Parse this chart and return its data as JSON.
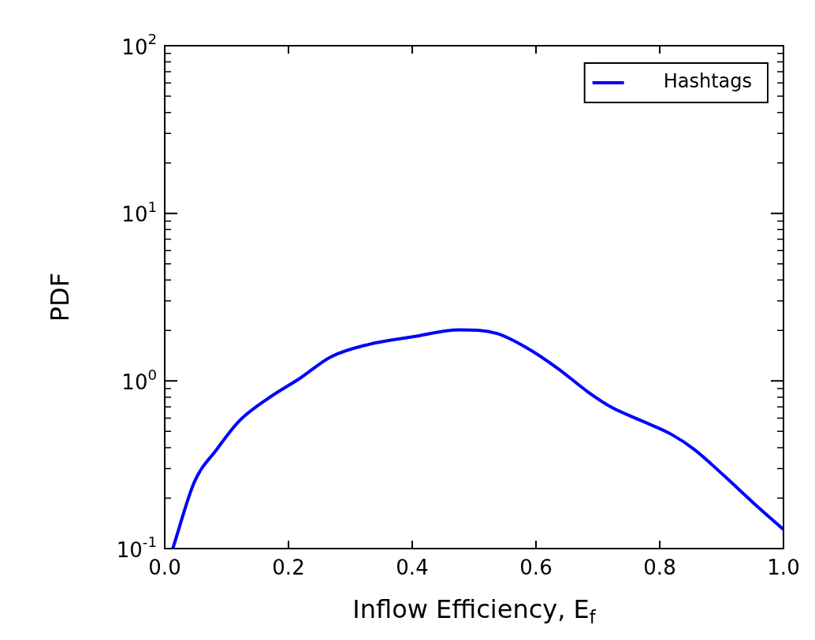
{
  "chart_data": {
    "type": "line",
    "xlabel": "Inflow Efficiency, E$_{f}$",
    "ylabel": "PDF",
    "log": "y",
    "xlim": [
      0,
      1
    ],
    "xticks": [
      {
        "value": 0,
        "label": "0.0"
      },
      0.2,
      0.4,
      0.6,
      0.8,
      {
        "value": 1,
        "label": "1.0"
      }
    ],
    "ylim": [
      0.1,
      100
    ],
    "yticks": [
      {
        "value": 0.1,
        "label": "10$^{-1}$"
      },
      {
        "value": 1,
        "label": "10$^{0}$"
      },
      {
        "value": 10,
        "label": "10$^{1}$"
      },
      {
        "value": 100,
        "label": "10$^{2}$"
      }
    ],
    "grid": false,
    "legend": "top right",
    "marker": "none",
    "line_style": "solid",
    "x": [
      0.013,
      0.048,
      0.084,
      0.121,
      0.17,
      0.219,
      0.268,
      0.329,
      0.403,
      0.476,
      0.537,
      0.586,
      0.635,
      0.684,
      0.721,
      0.77,
      0.819,
      0.856,
      0.905,
      0.953,
      1.0
    ],
    "series": [
      {
        "name": "Hashtags",
        "color": "#0000ff",
        "values": [
          0.1,
          0.25,
          0.39,
          0.58,
          0.8,
          1.04,
          1.39,
          1.65,
          1.84,
          2.02,
          1.92,
          1.57,
          1.19,
          0.86,
          0.7,
          0.58,
          0.48,
          0.39,
          0.27,
          0.185,
          0.13
        ]
      }
    ]
  }
}
